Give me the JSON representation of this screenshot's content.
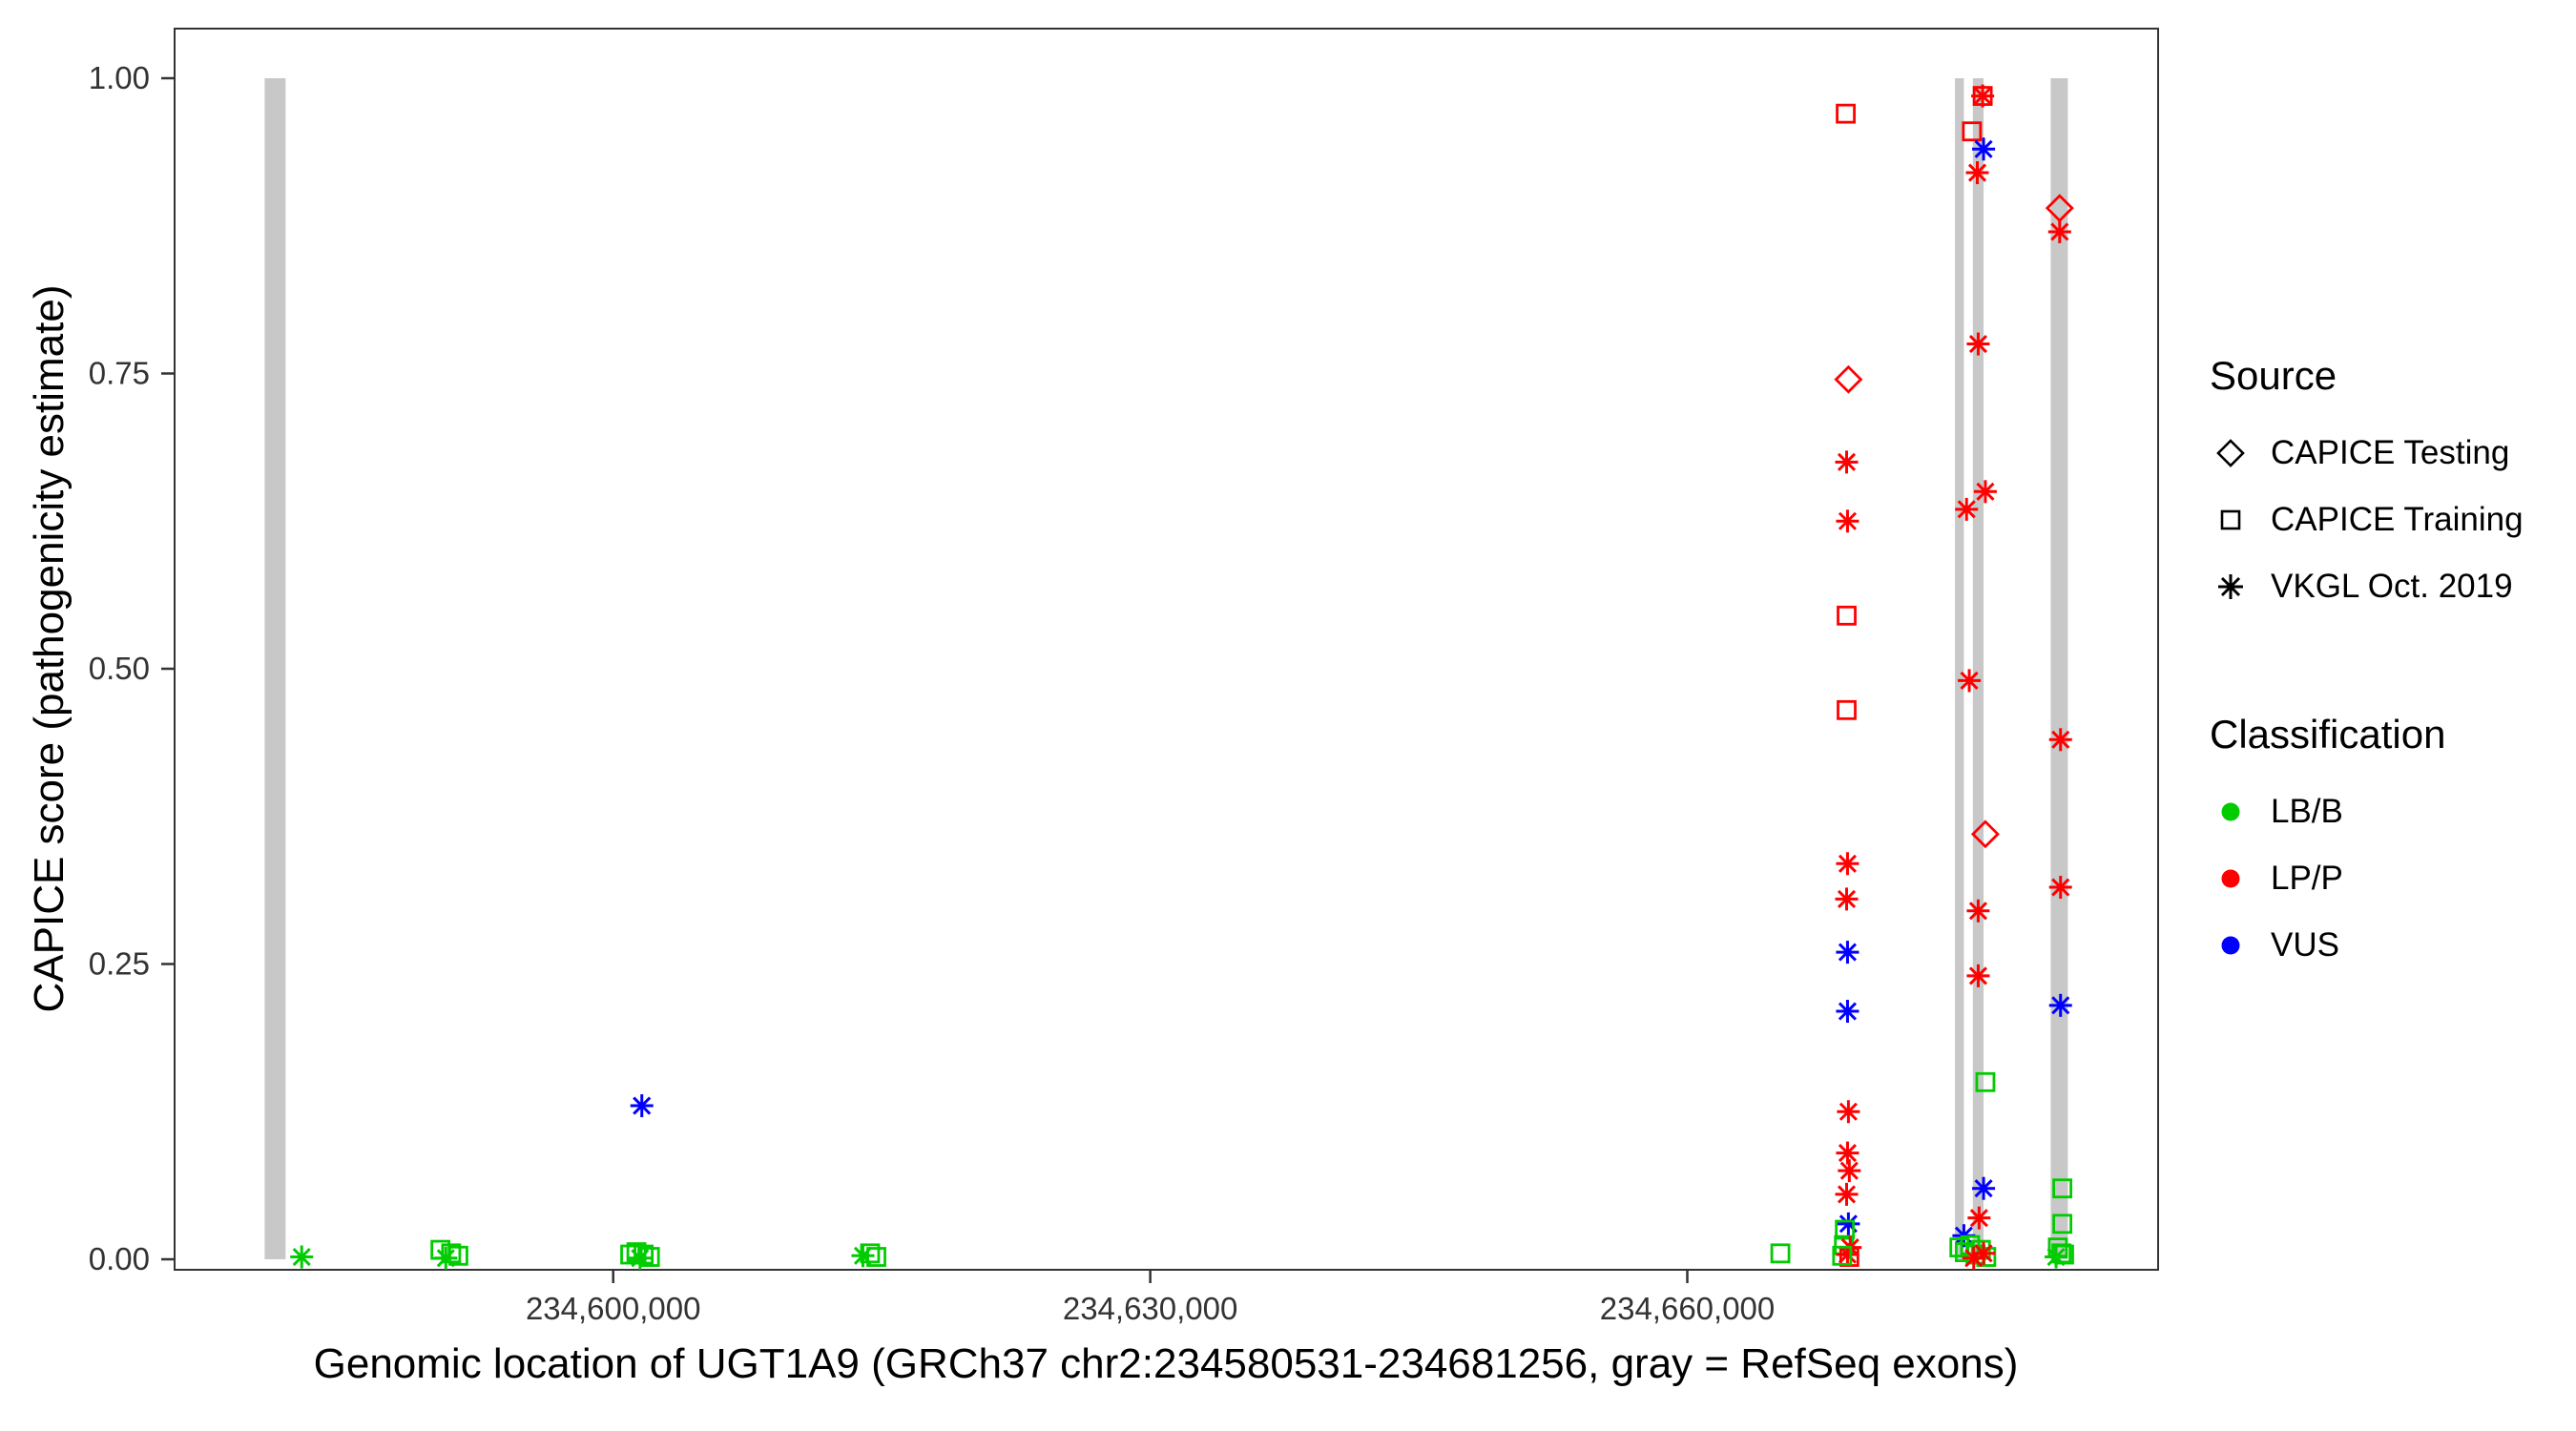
{
  "figure": {
    "x_axis_title": "Genomic location of UGT1A9 (GRCh37 chr2:234580531-234681256, gray = RefSeq exons)",
    "y_axis_title": "CAPICE score (pathogenicity estimate)"
  },
  "legend": {
    "source": {
      "title": "Source",
      "items": [
        {
          "shape": "diamond",
          "label": "CAPICE Testing"
        },
        {
          "shape": "square",
          "label": "CAPICE Training"
        },
        {
          "shape": "asterisk",
          "label": "VKGL Oct. 2019"
        }
      ]
    },
    "classification": {
      "title": "Classification",
      "items": [
        {
          "label": "LB/B",
          "color": "#00CC00"
        },
        {
          "label": "LP/P",
          "color": "#FF0000"
        },
        {
          "label": "VUS",
          "color": "#0000FF"
        }
      ]
    }
  },
  "chart_data": {
    "type": "scatter",
    "title": "",
    "xlabel": "Genomic location of UGT1A9 (GRCh37 chr2:234580531-234681256, gray = RefSeq exons)",
    "ylabel": "CAPICE score (pathogenicity estimate)",
    "x_domain": [
      234575500,
      234686300
    ],
    "ylim": [
      -0.05,
      1.05
    ],
    "grid": "off",
    "legend_position": "right",
    "x_ticks": [
      {
        "value": 234600000,
        "label": "234,600,000"
      },
      {
        "value": 234630000,
        "label": "234,630,000"
      },
      {
        "value": 234660000,
        "label": "234,660,000"
      }
    ],
    "y_ticks": [
      {
        "value": 0.0,
        "label": "0.00"
      },
      {
        "value": 0.25,
        "label": "0.25"
      },
      {
        "value": 0.5,
        "label": "0.50"
      },
      {
        "value": 0.75,
        "label": "0.75"
      },
      {
        "value": 1.0,
        "label": "1.00"
      }
    ],
    "exon_color": "#C8C8C8",
    "exons": [
      [
        234580531,
        234581700
      ],
      [
        234674950,
        234675450
      ],
      [
        234675950,
        234676550
      ],
      [
        234680300,
        234681256
      ]
    ],
    "class_colors": {
      "LB/B": "#00CC00",
      "LP/P": "#FF0000",
      "VUS": "#0000FF"
    },
    "points": [
      {
        "x": 234582600,
        "y": 0.002,
        "shape": "asterisk",
        "cls": "LB/B"
      },
      {
        "x": 234590350,
        "y": 0.008,
        "shape": "square",
        "cls": "LB/B"
      },
      {
        "x": 234590950,
        "y": 0.005,
        "shape": "square",
        "cls": "LB/B"
      },
      {
        "x": 234591350,
        "y": 0.003,
        "shape": "square",
        "cls": "LB/B"
      },
      {
        "x": 234590650,
        "y": 0.001,
        "shape": "asterisk",
        "cls": "LB/B"
      },
      {
        "x": 234601600,
        "y": 0.13,
        "shape": "asterisk",
        "cls": "VUS"
      },
      {
        "x": 234600950,
        "y": 0.004,
        "shape": "square",
        "cls": "LB/B"
      },
      {
        "x": 234601300,
        "y": 0.006,
        "shape": "square",
        "cls": "LB/B"
      },
      {
        "x": 234601700,
        "y": 0.004,
        "shape": "square",
        "cls": "LB/B"
      },
      {
        "x": 234602050,
        "y": 0.002,
        "shape": "square",
        "cls": "LB/B"
      },
      {
        "x": 234601500,
        "y": 0.001,
        "shape": "asterisk",
        "cls": "LB/B"
      },
      {
        "x": 234613950,
        "y": 0.003,
        "shape": "asterisk",
        "cls": "LB/B"
      },
      {
        "x": 234614350,
        "y": 0.005,
        "shape": "square",
        "cls": "LB/B"
      },
      {
        "x": 234614700,
        "y": 0.002,
        "shape": "square",
        "cls": "LB/B"
      },
      {
        "x": 234665200,
        "y": 0.005,
        "shape": "square",
        "cls": "LB/B"
      },
      {
        "x": 234668850,
        "y": 0.97,
        "shape": "square",
        "cls": "LP/P"
      },
      {
        "x": 234669000,
        "y": 0.745,
        "shape": "diamond",
        "cls": "LP/P"
      },
      {
        "x": 234668900,
        "y": 0.675,
        "shape": "asterisk",
        "cls": "LP/P"
      },
      {
        "x": 234668950,
        "y": 0.625,
        "shape": "asterisk",
        "cls": "LP/P"
      },
      {
        "x": 234668900,
        "y": 0.545,
        "shape": "square",
        "cls": "LP/P"
      },
      {
        "x": 234668900,
        "y": 0.465,
        "shape": "square",
        "cls": "LP/P"
      },
      {
        "x": 234668950,
        "y": 0.335,
        "shape": "asterisk",
        "cls": "LP/P"
      },
      {
        "x": 234668900,
        "y": 0.305,
        "shape": "asterisk",
        "cls": "LP/P"
      },
      {
        "x": 234668950,
        "y": 0.26,
        "shape": "asterisk",
        "cls": "VUS"
      },
      {
        "x": 234668950,
        "y": 0.21,
        "shape": "asterisk",
        "cls": "VUS"
      },
      {
        "x": 234669000,
        "y": 0.125,
        "shape": "asterisk",
        "cls": "LP/P"
      },
      {
        "x": 234668950,
        "y": 0.09,
        "shape": "asterisk",
        "cls": "LP/P"
      },
      {
        "x": 234669050,
        "y": 0.075,
        "shape": "asterisk",
        "cls": "LP/P"
      },
      {
        "x": 234668900,
        "y": 0.055,
        "shape": "asterisk",
        "cls": "LP/P"
      },
      {
        "x": 234669000,
        "y": 0.03,
        "shape": "asterisk",
        "cls": "VUS"
      },
      {
        "x": 234668800,
        "y": 0.025,
        "shape": "square",
        "cls": "LB/B"
      },
      {
        "x": 234668750,
        "y": 0.012,
        "shape": "square",
        "cls": "LB/B"
      },
      {
        "x": 234669100,
        "y": 0.01,
        "shape": "asterisk",
        "cls": "LP/P"
      },
      {
        "x": 234668950,
        "y": 0.004,
        "shape": "asterisk",
        "cls": "LP/P"
      },
      {
        "x": 234669050,
        "y": 0.002,
        "shape": "square",
        "cls": "LP/P"
      },
      {
        "x": 234668650,
        "y": 0.003,
        "shape": "square",
        "cls": "LB/B"
      },
      {
        "x": 234676500,
        "y": 0.985,
        "shape": "square",
        "cls": "LP/P"
      },
      {
        "x": 234676500,
        "y": 0.985,
        "shape": "asterisk",
        "cls": "LP/P"
      },
      {
        "x": 234675900,
        "y": 0.955,
        "shape": "square",
        "cls": "LP/P"
      },
      {
        "x": 234676550,
        "y": 0.94,
        "shape": "asterisk",
        "cls": "VUS"
      },
      {
        "x": 234676200,
        "y": 0.92,
        "shape": "asterisk",
        "cls": "LP/P"
      },
      {
        "x": 234676250,
        "y": 0.775,
        "shape": "asterisk",
        "cls": "LP/P"
      },
      {
        "x": 234676650,
        "y": 0.65,
        "shape": "asterisk",
        "cls": "LP/P"
      },
      {
        "x": 234675600,
        "y": 0.635,
        "shape": "asterisk",
        "cls": "LP/P"
      },
      {
        "x": 234675750,
        "y": 0.49,
        "shape": "asterisk",
        "cls": "LP/P"
      },
      {
        "x": 234676650,
        "y": 0.36,
        "shape": "diamond",
        "cls": "LP/P"
      },
      {
        "x": 234676250,
        "y": 0.295,
        "shape": "asterisk",
        "cls": "LP/P"
      },
      {
        "x": 234676250,
        "y": 0.24,
        "shape": "asterisk",
        "cls": "LP/P"
      },
      {
        "x": 234676650,
        "y": 0.15,
        "shape": "square",
        "cls": "LB/B"
      },
      {
        "x": 234676550,
        "y": 0.06,
        "shape": "asterisk",
        "cls": "VUS"
      },
      {
        "x": 234675450,
        "y": 0.02,
        "shape": "asterisk",
        "cls": "VUS"
      },
      {
        "x": 234676300,
        "y": 0.035,
        "shape": "asterisk",
        "cls": "LP/P"
      },
      {
        "x": 234675200,
        "y": 0.01,
        "shape": "square",
        "cls": "LB/B"
      },
      {
        "x": 234675500,
        "y": 0.006,
        "shape": "square",
        "cls": "LB/B"
      },
      {
        "x": 234675800,
        "y": 0.012,
        "shape": "square",
        "cls": "LB/B"
      },
      {
        "x": 234676100,
        "y": 0.004,
        "shape": "square",
        "cls": "LB/B"
      },
      {
        "x": 234676400,
        "y": 0.008,
        "shape": "square",
        "cls": "LB/B"
      },
      {
        "x": 234676700,
        "y": 0.002,
        "shape": "square",
        "cls": "LB/B"
      },
      {
        "x": 234676000,
        "y": 0.001,
        "shape": "asterisk",
        "cls": "LP/P"
      },
      {
        "x": 234676550,
        "y": 0.005,
        "shape": "asterisk",
        "cls": "LP/P"
      },
      {
        "x": 234680800,
        "y": 0.89,
        "shape": "diamond",
        "cls": "LP/P"
      },
      {
        "x": 234680800,
        "y": 0.87,
        "shape": "asterisk",
        "cls": "LP/P"
      },
      {
        "x": 234680850,
        "y": 0.44,
        "shape": "asterisk",
        "cls": "LP/P"
      },
      {
        "x": 234680850,
        "y": 0.315,
        "shape": "asterisk",
        "cls": "LP/P"
      },
      {
        "x": 234680850,
        "y": 0.215,
        "shape": "asterisk",
        "cls": "VUS"
      },
      {
        "x": 234680950,
        "y": 0.06,
        "shape": "square",
        "cls": "LB/B"
      },
      {
        "x": 234680950,
        "y": 0.03,
        "shape": "square",
        "cls": "LB/B"
      },
      {
        "x": 234680700,
        "y": 0.01,
        "shape": "square",
        "cls": "LB/B"
      },
      {
        "x": 234680900,
        "y": 0.005,
        "shape": "square",
        "cls": "LB/B"
      },
      {
        "x": 234680600,
        "y": 0.002,
        "shape": "asterisk",
        "cls": "LB/B"
      },
      {
        "x": 234681050,
        "y": 0.004,
        "shape": "square",
        "cls": "LB/B"
      }
    ]
  }
}
